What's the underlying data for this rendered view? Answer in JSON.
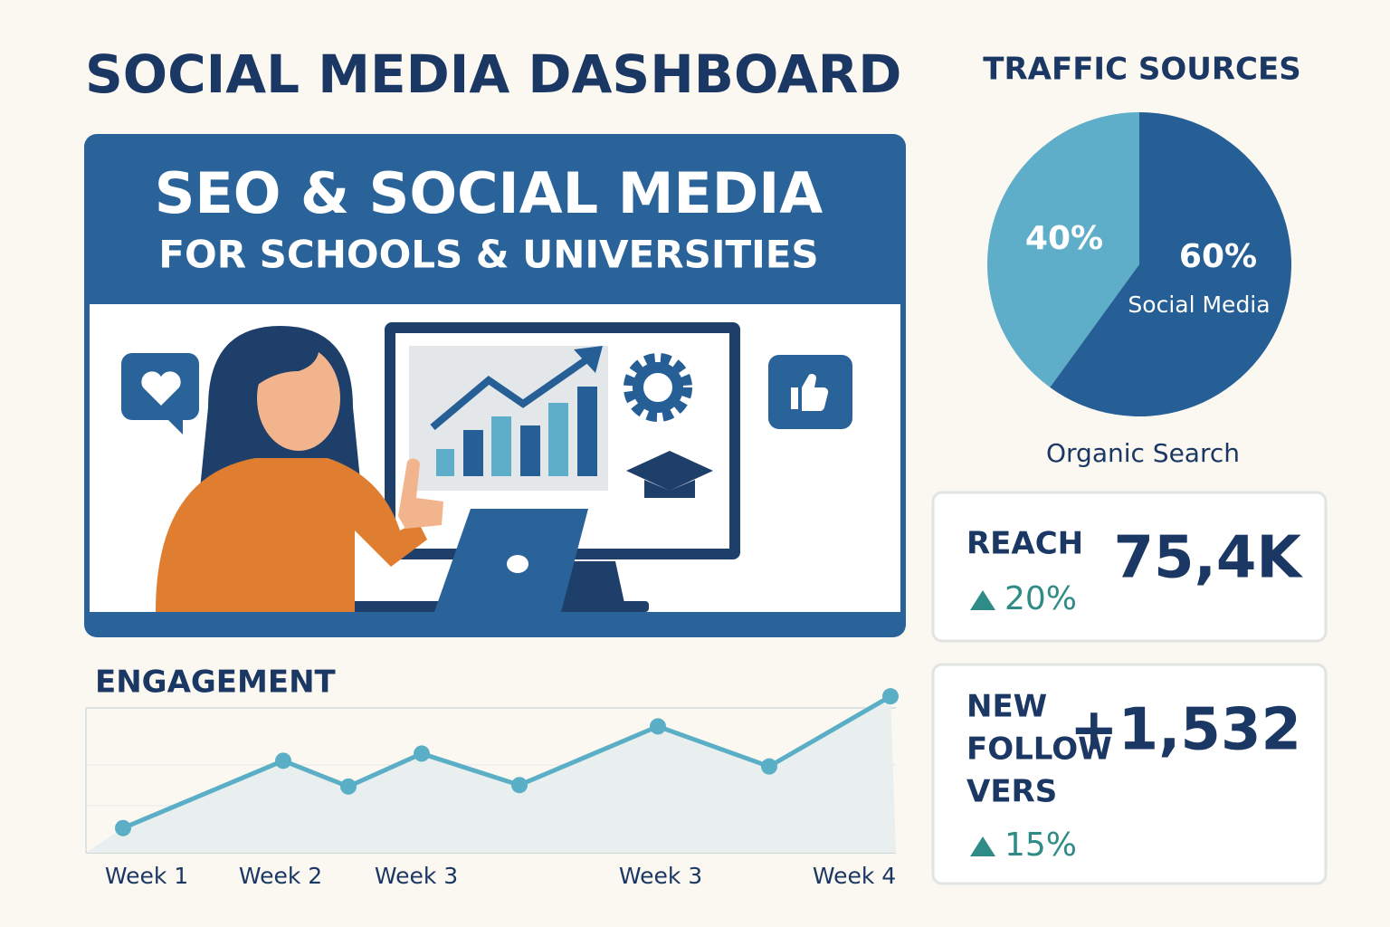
{
  "header": {
    "title": "SOCIAL MEDIA DASHBOARD"
  },
  "banner": {
    "title": "SEO & SOCIAL MEDIA",
    "subtitle": "FOR SCHOOLS & UNIVERSITIES"
  },
  "chart_data": [
    {
      "type": "pie",
      "title": "TRAFFIC SOURCES",
      "categories": [
        "Organic Search",
        "Social Media"
      ],
      "values": [
        40,
        60
      ],
      "value_labels": [
        "40%",
        "60%"
      ],
      "colors": [
        "#5eaec9",
        "#255f96"
      ]
    },
    {
      "type": "line",
      "title": "ENGAGEMENT",
      "categories": [
        "Week 1",
        "Week 2",
        null,
        "Week 3",
        null,
        "Week 3",
        null,
        "Week 4"
      ],
      "values": [
        16,
        63,
        45,
        68,
        46,
        87,
        59,
        108
      ],
      "ylim": [
        0,
        110
      ],
      "color": "#5aaec6"
    }
  ],
  "kpis": [
    {
      "label_lines": [
        "REACH"
      ],
      "value": "75,4K",
      "change": "20%"
    },
    {
      "label_lines": [
        "NEW",
        "FOLLOW",
        "VERS"
      ],
      "value": "+1,532",
      "change": "15%"
    }
  ]
}
